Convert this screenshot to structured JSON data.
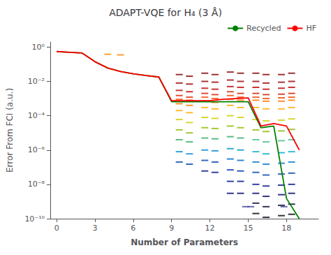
{
  "chart_data": {
    "type": "line",
    "title": "ADAPT-VQE for H₄ (3 Å)",
    "xlabel": "Number of Parameters",
    "ylabel": "Error From FCI (a.u.)",
    "log": "y",
    "grid": false,
    "legend": "upper right",
    "xlim": [
      -0.5,
      20.5
    ],
    "xticks": [
      0,
      3,
      6,
      9,
      12,
      15,
      18
    ],
    "ylim": [
      1e-10,
      2.0
    ],
    "yticks": [
      {
        "value": 1e-10,
        "label": "10⁻¹⁰"
      },
      {
        "value": 1e-08,
        "label": "10⁻⁸"
      },
      {
        "value": 1e-06,
        "label": "10⁻⁶"
      },
      {
        "value": 0.0001,
        "label": "10⁻⁴"
      },
      {
        "value": 0.01,
        "label": "10⁻²"
      },
      {
        "value": 1,
        "label": "10⁰"
      }
    ],
    "series": [
      {
        "type": "scatter",
        "marker": "dash",
        "x": [
          9.6,
          9.6,
          9.6,
          9.6,
          9.6,
          9.6,
          9.6,
          9.6,
          9.6,
          9.6,
          9.6,
          9.6
        ],
        "values": [
          0.025,
          0.008,
          0.003,
          0.0015,
          0.0009,
          0.0005,
          0.0002,
          6e-05,
          1.5e-05,
          4e-06,
          8e-07,
          2e-07
        ],
        "colors": [
          "#7f0000",
          "#990000",
          "#bb0000",
          "#dd2200",
          "#ff4400",
          "#ff7700",
          "#ffaa00",
          "#cccc00",
          "#88bb00",
          "#33aa66",
          "#0088cc",
          "#0044aa"
        ]
      },
      {
        "type": "scatter",
        "marker": "dash",
        "x": [
          10.4,
          10.4,
          10.4,
          10.4,
          10.4,
          10.4,
          10.4,
          10.4,
          10.4,
          10.4,
          10.4,
          10.4
        ],
        "values": [
          0.02,
          0.007,
          0.0025,
          0.0012,
          0.0008,
          0.0004,
          0.00015,
          4e-05,
          1e-05,
          3e-06,
          6e-07,
          1.5e-07
        ],
        "colors": [
          "#7f0000",
          "#990000",
          "#bb0000",
          "#dd2200",
          "#ff4400",
          "#ff7700",
          "#ffaa00",
          "#cccc00",
          "#88bb00",
          "#33aa66",
          "#0088cc",
          "#0044aa"
        ]
      },
      {
        "type": "scatter",
        "marker": "dash",
        "x": [
          11.6,
          11.6,
          11.6,
          11.6,
          11.6,
          11.6,
          11.6,
          11.6,
          11.6,
          11.6,
          11.6,
          11.6,
          11.6
        ],
        "values": [
          0.03,
          0.01,
          0.004,
          0.002,
          0.0012,
          0.0007,
          0.0003,
          8e-05,
          2e-05,
          5e-06,
          1e-06,
          2.5e-07,
          6e-08
        ],
        "colors": [
          "#7f0000",
          "#990000",
          "#bb0000",
          "#dd2200",
          "#ff4400",
          "#ff7700",
          "#ffaa00",
          "#cccc00",
          "#88bb00",
          "#33aa66",
          "#0088cc",
          "#0044aa",
          "#001188"
        ]
      },
      {
        "type": "scatter",
        "marker": "dash",
        "x": [
          12.4,
          12.4,
          12.4,
          12.4,
          12.4,
          12.4,
          12.4,
          12.4,
          12.4,
          12.4,
          12.4,
          12.4,
          12.4
        ],
        "values": [
          0.025,
          0.009,
          0.0035,
          0.0017,
          0.001,
          0.0006,
          0.00025,
          7e-05,
          1.8e-05,
          4.5e-06,
          9e-07,
          2e-07,
          5e-08
        ],
        "colors": [
          "#7f0000",
          "#990000",
          "#bb0000",
          "#dd2200",
          "#ff4400",
          "#ff7700",
          "#ffaa00",
          "#cccc00",
          "#88bb00",
          "#33aa66",
          "#0088cc",
          "#0044aa",
          "#001188"
        ]
      },
      {
        "type": "scatter",
        "marker": "dash",
        "x": [
          13.6,
          13.6,
          13.6,
          13.6,
          13.6,
          13.6,
          13.6,
          13.6,
          13.6,
          13.6,
          13.6,
          13.6,
          13.6,
          13.6,
          13.6
        ],
        "values": [
          0.035,
          0.012,
          0.005,
          0.0025,
          0.0015,
          0.0009,
          0.0004,
          0.0001,
          2.5e-05,
          6e-06,
          1.2e-06,
          3e-07,
          7e-08,
          1.5e-08,
          3e-09
        ],
        "colors": [
          "#7f0000",
          "#990000",
          "#bb0000",
          "#cc2200",
          "#ee4400",
          "#ff7700",
          "#ffaa00",
          "#cccc00",
          "#88bb00",
          "#33aa66",
          "#0099bb",
          "#0066cc",
          "#0033aa",
          "#001188",
          "#000066"
        ]
      },
      {
        "type": "scatter",
        "marker": "dash",
        "x": [
          14.4,
          14.4,
          14.4,
          14.4,
          14.4,
          14.4,
          14.4,
          14.4,
          14.4,
          14.4,
          14.4,
          14.4,
          14.4,
          14.4,
          14.4
        ],
        "values": [
          0.03,
          0.01,
          0.0045,
          0.002,
          0.0012,
          0.0008,
          0.0003,
          8e-05,
          2e-05,
          5e-06,
          1e-06,
          2.5e-07,
          6e-08,
          1.5e-08,
          3e-09
        ],
        "colors": [
          "#7f0000",
          "#990000",
          "#bb0000",
          "#cc2200",
          "#ee4400",
          "#ff7700",
          "#ffaa00",
          "#cccc00",
          "#88bb00",
          "#33aa66",
          "#0099bb",
          "#0066cc",
          "#0033aa",
          "#001188",
          "#000066"
        ]
      },
      {
        "type": "scatter",
        "marker": "dash",
        "x": [
          15.6,
          15.6,
          15.6,
          15.6,
          15.6,
          15.6,
          15.6,
          15.6,
          15.6,
          15.6,
          15.6,
          15.6,
          15.6,
          15.6,
          15.6,
          15.6,
          15.6
        ],
        "values": [
          0.03,
          0.01,
          0.0045,
          0.002,
          0.0012,
          0.0008,
          0.0003,
          6e-05,
          1.5e-05,
          4e-06,
          8e-07,
          2e-07,
          5e-08,
          1e-08,
          3e-09,
          8e-10,
          2e-10
        ],
        "colors": [
          "#7f0000",
          "#990000",
          "#bb0000",
          "#cc2200",
          "#ee4400",
          "#ff7700",
          "#ffaa00",
          "#cccc00",
          "#88bb00",
          "#44bb88",
          "#00aacc",
          "#0077cc",
          "#0044aa",
          "#001188",
          "#000066",
          "#000033",
          "#000011"
        ]
      },
      {
        "type": "scatter",
        "marker": "dash",
        "x": [
          16.4,
          16.4,
          16.4,
          16.4,
          16.4,
          16.4,
          16.4,
          16.4,
          16.4,
          16.4,
          16.4,
          16.4,
          16.4,
          16.4,
          16.4,
          16.4,
          16.4
        ],
        "values": [
          0.025,
          0.008,
          0.0035,
          0.0017,
          0.001,
          0.0007,
          0.00025,
          5e-05,
          1.2e-05,
          3e-06,
          6e-07,
          1.5e-07,
          3.5e-08,
          8e-09,
          2e-09,
          5e-10,
          1.2e-10
        ],
        "colors": [
          "#7f0000",
          "#990000",
          "#bb0000",
          "#cc2200",
          "#ee4400",
          "#ff7700",
          "#ffaa00",
          "#cccc00",
          "#88bb00",
          "#44bb88",
          "#00aacc",
          "#0077cc",
          "#0044aa",
          "#001188",
          "#000066",
          "#000033",
          "#000011"
        ]
      },
      {
        "type": "scatter",
        "marker": "dash",
        "x": [
          17.6,
          17.6,
          17.6,
          17.6,
          17.6,
          17.6,
          17.6,
          17.6,
          17.6,
          17.6,
          17.6,
          17.6,
          17.6,
          17.6,
          17.6,
          17.6,
          17.6
        ],
        "values": [
          0.025,
          0.009,
          0.004,
          0.0018,
          0.0011,
          0.0007,
          0.00025,
          5.5e-05,
          1.3e-05,
          3.5e-06,
          7e-07,
          1.7e-07,
          4e-08,
          9e-09,
          2.5e-09,
          6e-10,
          1.5e-10
        ],
        "colors": [
          "#7f0000",
          "#990000",
          "#bb0000",
          "#cc2200",
          "#ee4400",
          "#ff7700",
          "#ffaa00",
          "#cccc00",
          "#88bb00",
          "#44bb88",
          "#00aacc",
          "#0077cc",
          "#0044aa",
          "#001188",
          "#000066",
          "#000033",
          "#000011"
        ]
      },
      {
        "type": "scatter",
        "marker": "dash",
        "x": [
          18.4,
          18.4,
          18.4,
          18.4,
          18.4,
          18.4,
          18.4,
          18.4,
          18.4,
          18.4,
          18.4,
          18.4,
          18.4,
          18.4,
          18.4,
          18.4,
          18.4
        ],
        "values": [
          0.03,
          0.01,
          0.0045,
          0.002,
          0.0012,
          0.0008,
          0.0003,
          6.5e-05,
          1.6e-05,
          4e-06,
          8e-07,
          2e-07,
          4.5e-08,
          1e-08,
          3e-09,
          7e-10,
          1.8e-10
        ],
        "colors": [
          "#7f0000",
          "#990000",
          "#bb0000",
          "#cc2200",
          "#ee4400",
          "#ff7700",
          "#ffaa00",
          "#cccc00",
          "#88bb00",
          "#44bb88",
          "#00aacc",
          "#0077cc",
          "#0044aa",
          "#001188",
          "#000066",
          "#000033",
          "#000011"
        ]
      },
      {
        "type": "scatter",
        "marker": "dash",
        "x": [
          4.0,
          5.0,
          14.8,
          15.2,
          17.8
        ],
        "values": [
          0.38,
          0.35,
          5e-10,
          5e-10,
          5e-10
        ],
        "colors": [
          "#ff8800",
          "#ff8800",
          "#444499",
          "#444499",
          "#444499"
        ]
      },
      {
        "type": "line",
        "name": "Recycled",
        "color": "green",
        "x": [
          0,
          1,
          2,
          3,
          4,
          5,
          6,
          7,
          8,
          9,
          10,
          11,
          12,
          13,
          14,
          15,
          16,
          17,
          18,
          19
        ],
        "values": [
          0.55,
          0.5,
          0.45,
          0.14,
          0.06,
          0.038,
          0.028,
          0.022,
          0.018,
          0.00065,
          0.00065,
          0.00065,
          0.00065,
          0.00065,
          0.00065,
          0.00065,
          2e-05,
          2.5e-05,
          1.5e-09,
          1e-10
        ]
      },
      {
        "type": "line",
        "name": "HF",
        "color": "red",
        "x": [
          0,
          1,
          2,
          3,
          4,
          5,
          6,
          7,
          8,
          9,
          10,
          11,
          12,
          13,
          14,
          15,
          16,
          17,
          18,
          19
        ],
        "values": [
          0.55,
          0.5,
          0.45,
          0.14,
          0.06,
          0.038,
          0.028,
          0.022,
          0.018,
          0.00075,
          0.00075,
          0.00075,
          0.00075,
          0.0009,
          0.001,
          0.0011,
          2.5e-05,
          3.5e-05,
          2.5e-05,
          1e-06
        ]
      }
    ]
  }
}
